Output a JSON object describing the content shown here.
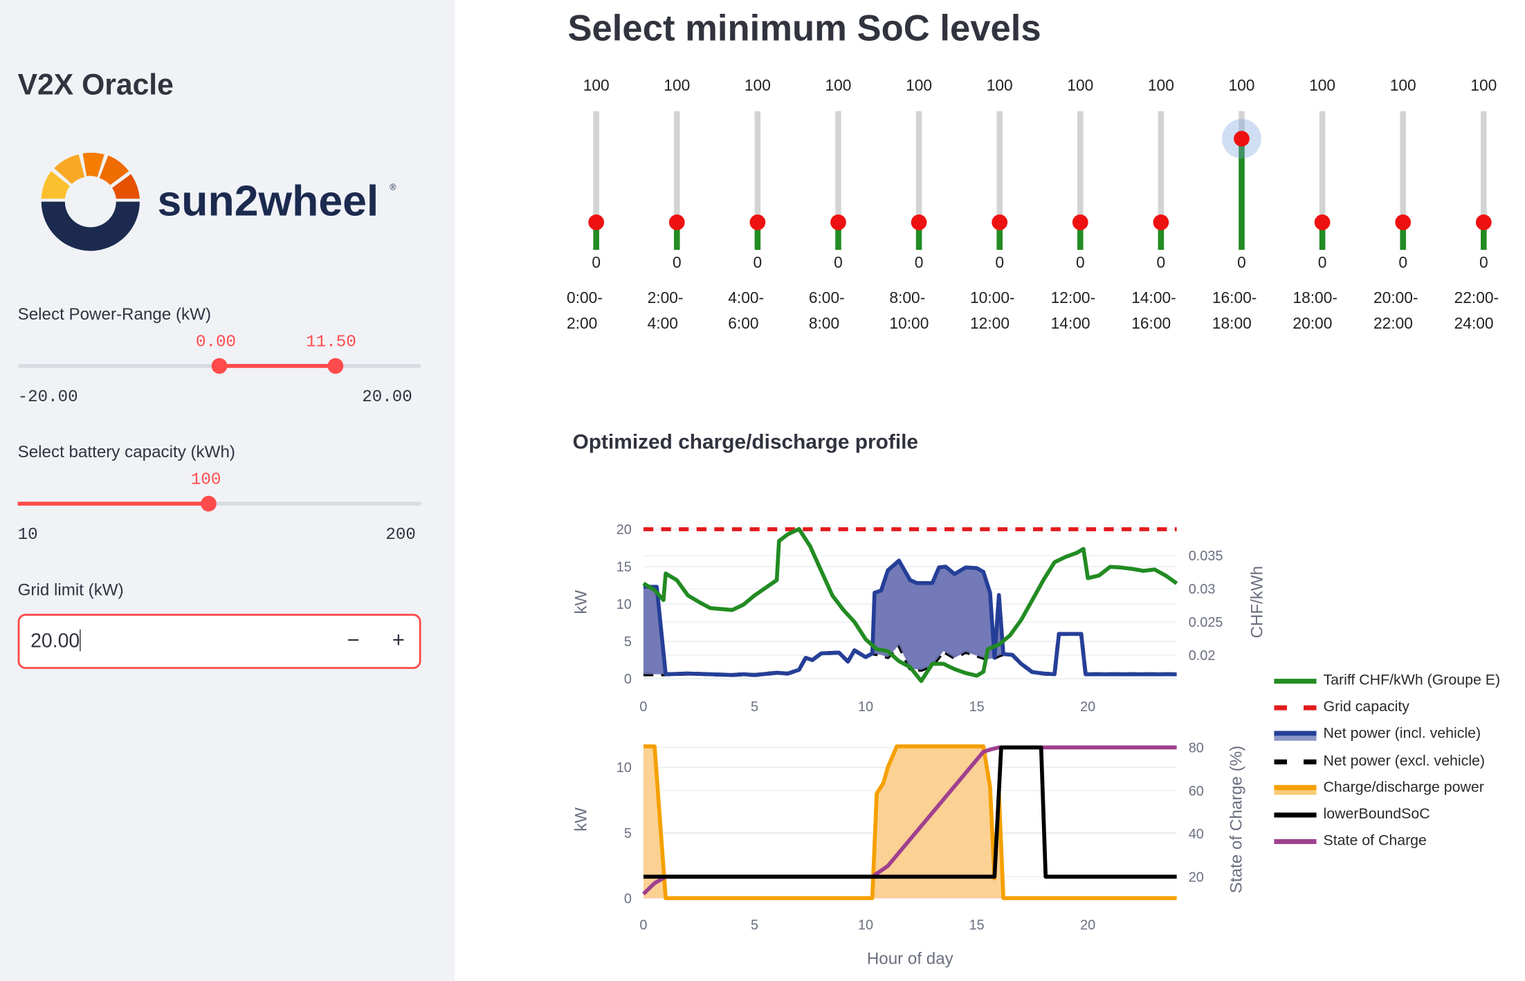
{
  "sidebar": {
    "app_title": "V2X Oracle",
    "logo_text": "sun2wheel",
    "power_range": {
      "label": "Select Power-Range (kW)",
      "low": "0.00",
      "high": "11.50",
      "min": "-20.00",
      "max": "20.00",
      "low_value": 0,
      "high_value": 11.5,
      "min_value": -20,
      "max_value": 20
    },
    "battery": {
      "label": "Select battery capacity (kWh)",
      "value": "100",
      "min": "10",
      "max": "200",
      "numeric_value": 100,
      "min_value": 10,
      "max_value": 200
    },
    "grid_limit": {
      "label": "Grid limit (kW)",
      "value": "20.00",
      "minus": "−",
      "plus": "+"
    }
  },
  "main": {
    "title": "Select minimum SoC levels",
    "slots": [
      {
        "max": "100",
        "min": "0",
        "value": 20,
        "time": [
          "0:00-",
          "2:00"
        ]
      },
      {
        "max": "100",
        "min": "0",
        "value": 20,
        "time": [
          "2:00-",
          "4:00"
        ]
      },
      {
        "max": "100",
        "min": "0",
        "value": 20,
        "time": [
          "4:00-",
          "6:00"
        ]
      },
      {
        "max": "100",
        "min": "0",
        "value": 20,
        "time": [
          "6:00-",
          "8:00"
        ]
      },
      {
        "max": "100",
        "min": "0",
        "value": 20,
        "time": [
          "8:00-",
          "10:00"
        ]
      },
      {
        "max": "100",
        "min": "0",
        "value": 20,
        "time": [
          "10:00-",
          "12:00"
        ]
      },
      {
        "max": "100",
        "min": "0",
        "value": 20,
        "time": [
          "12:00-",
          "14:00"
        ]
      },
      {
        "max": "100",
        "min": "0",
        "value": 20,
        "time": [
          "14:00-",
          "16:00"
        ]
      },
      {
        "max": "100",
        "min": "0",
        "value": 80,
        "time": [
          "16:00-",
          "18:00"
        ],
        "focused": true
      },
      {
        "max": "100",
        "min": "0",
        "value": 20,
        "time": [
          "18:00-",
          "20:00"
        ]
      },
      {
        "max": "100",
        "min": "0",
        "value": 20,
        "time": [
          "20:00-",
          "22:00"
        ]
      },
      {
        "max": "100",
        "min": "0",
        "value": 20,
        "time": [
          "22:00-",
          "24:00"
        ]
      }
    ],
    "profile_title": "Optimized charge/discharge profile"
  },
  "colors": {
    "accent": "#ff4b4b",
    "tariff": "#228b22",
    "grid": "#e31a1c",
    "net_incl": "#253f98",
    "net_incl_fill": "#6b73b3",
    "net_excl": "#000000",
    "charge": "#f5a000",
    "charge_fill": "#fccf8e",
    "lower_bound": "#000000",
    "soc": "#a0408f"
  },
  "chart_data": [
    {
      "type": "line",
      "xlabel": "",
      "ylabel": "kW",
      "y2label": "CHF/kWh",
      "xlim": [
        0,
        24
      ],
      "ylim": [
        0,
        20
      ],
      "y2lim": [
        0.0165,
        0.039
      ],
      "xticks": [
        "0",
        "5",
        "10",
        "15",
        "20"
      ],
      "yticks": [
        "0",
        "5",
        "10",
        "15",
        "20"
      ],
      "y2ticks": [
        "0.02",
        "0.025",
        "0.03",
        "0.035"
      ],
      "grid": true,
      "series": [
        {
          "name": "Grid capacity",
          "axis": "y",
          "dash": true,
          "points": [
            [
              0,
              20
            ],
            [
              24,
              20
            ]
          ]
        },
        {
          "name": "Net power (excl. vehicle)",
          "axis": "y",
          "dash": true,
          "points": [
            [
              0,
              0.6
            ],
            [
              1,
              0.6
            ],
            [
              2,
              0.7
            ],
            [
              3,
              0.6
            ],
            [
              4,
              0.5
            ],
            [
              4.5,
              0.6
            ],
            [
              5,
              0.5
            ],
            [
              6,
              0.8
            ],
            [
              6.5,
              0.7
            ],
            [
              7,
              1.2
            ],
            [
              7.3,
              2.8
            ],
            [
              7.6,
              2.5
            ],
            [
              8,
              3.4
            ],
            [
              8.8,
              3.5
            ],
            [
              9.2,
              2.3
            ],
            [
              9.5,
              3.8
            ],
            [
              10,
              2.9
            ],
            [
              10.3,
              3.4
            ],
            [
              10.7,
              3.2
            ],
            [
              11,
              2.9
            ],
            [
              11.5,
              4.5
            ],
            [
              12,
              1.4
            ],
            [
              12.5,
              1.2
            ],
            [
              13,
              1.8
            ],
            [
              13.5,
              3.7
            ],
            [
              14,
              2.8
            ],
            [
              14.5,
              3.6
            ],
            [
              15,
              3.1
            ],
            [
              15.5,
              2.6
            ],
            [
              15.8,
              2.8
            ],
            [
              16,
              3.1
            ],
            [
              16.2,
              3.3
            ],
            [
              16.6,
              3.2
            ],
            [
              17,
              2.0
            ],
            [
              17.5,
              0.9
            ],
            [
              18,
              0.7
            ],
            [
              18.5,
              0.6
            ],
            [
              18.7,
              6.0
            ],
            [
              19.7,
              6.0
            ],
            [
              19.9,
              0.6
            ],
            [
              24,
              0.6
            ]
          ]
        },
        {
          "name": "Net power (incl. vehicle)",
          "axis": "y",
          "fill": true,
          "points": [
            [
              0,
              12.3
            ],
            [
              0.6,
              12.3
            ],
            [
              1,
              0.6
            ],
            [
              2,
              0.7
            ],
            [
              3,
              0.6
            ],
            [
              4,
              0.5
            ],
            [
              4.5,
              0.6
            ],
            [
              5,
              0.5
            ],
            [
              6,
              0.8
            ],
            [
              6.5,
              0.7
            ],
            [
              7,
              1.2
            ],
            [
              7.3,
              2.8
            ],
            [
              7.6,
              2.5
            ],
            [
              8,
              3.4
            ],
            [
              8.8,
              3.5
            ],
            [
              9.2,
              2.3
            ],
            [
              9.5,
              3.8
            ],
            [
              10,
              2.9
            ],
            [
              10.3,
              3.4
            ],
            [
              10.4,
              11.5
            ],
            [
              10.7,
              11.8
            ],
            [
              11,
              14.5
            ],
            [
              11.5,
              15.8
            ],
            [
              12,
              13.2
            ],
            [
              12.3,
              12.8
            ],
            [
              13,
              12.8
            ],
            [
              13.3,
              14.9
            ],
            [
              13.6,
              15.0
            ],
            [
              14,
              14.0
            ],
            [
              14.5,
              14.9
            ],
            [
              15,
              14.8
            ],
            [
              15.3,
              14.3
            ],
            [
              15.6,
              11.5
            ],
            [
              15.8,
              2.8
            ],
            [
              16,
              11.2
            ],
            [
              16.2,
              3.3
            ],
            [
              16.6,
              3.2
            ],
            [
              17,
              2.0
            ],
            [
              17.5,
              0.9
            ],
            [
              18,
              0.7
            ],
            [
              18.5,
              0.6
            ],
            [
              18.7,
              6.0
            ],
            [
              19.7,
              6.0
            ],
            [
              19.9,
              0.6
            ],
            [
              24,
              0.6
            ]
          ]
        },
        {
          "name": "Tariff CHF/kWh (Groupe E)",
          "axis": "y2",
          "points": [
            [
              0,
              0.0308
            ],
            [
              0.5,
              0.0298
            ],
            [
              0.9,
              0.0283
            ],
            [
              1,
              0.0323
            ],
            [
              1.5,
              0.0313
            ],
            [
              2,
              0.029
            ],
            [
              2.5,
              0.028
            ],
            [
              3,
              0.0271
            ],
            [
              4,
              0.0268
            ],
            [
              4.5,
              0.0276
            ],
            [
              5,
              0.029
            ],
            [
              6,
              0.0313
            ],
            [
              6.1,
              0.0372
            ],
            [
              6.5,
              0.0382
            ],
            [
              7,
              0.039
            ],
            [
              7.5,
              0.0364
            ],
            [
              8,
              0.0327
            ],
            [
              8.5,
              0.029
            ],
            [
              9,
              0.0268
            ],
            [
              9.5,
              0.025
            ],
            [
              10,
              0.0224
            ],
            [
              10.5,
              0.0209
            ],
            [
              11,
              0.0206
            ],
            [
              11.5,
              0.0191
            ],
            [
              12,
              0.0182
            ],
            [
              12.5,
              0.0161
            ],
            [
              13,
              0.0187
            ],
            [
              13.5,
              0.0187
            ],
            [
              14,
              0.0179
            ],
            [
              14.5,
              0.0173
            ],
            [
              15,
              0.0169
            ],
            [
              15.3,
              0.0175
            ],
            [
              15.5,
              0.0209
            ],
            [
              16,
              0.0216
            ],
            [
              16.5,
              0.023
            ],
            [
              17,
              0.0253
            ],
            [
              17.5,
              0.0283
            ],
            [
              18,
              0.0313
            ],
            [
              18.5,
              0.034
            ],
            [
              19,
              0.0348
            ],
            [
              19.5,
              0.0354
            ],
            [
              19.8,
              0.036
            ],
            [
              20,
              0.0316
            ],
            [
              20.5,
              0.032
            ],
            [
              21,
              0.0333
            ],
            [
              21.5,
              0.0332
            ],
            [
              22,
              0.033
            ],
            [
              22.5,
              0.0327
            ],
            [
              23,
              0.0329
            ],
            [
              23.5,
              0.032
            ],
            [
              24,
              0.0308
            ]
          ]
        }
      ]
    },
    {
      "type": "line",
      "xlabel": "Hour of day",
      "ylabel": "kW",
      "y2label": "State of Charge (%)",
      "xlim": [
        0,
        24
      ],
      "ylim": [
        0,
        11.6
      ],
      "y2lim": [
        10,
        80
      ],
      "xticks": [
        "0",
        "5",
        "10",
        "15",
        "20"
      ],
      "yticks": [
        "0",
        "5",
        "10"
      ],
      "y2ticks": [
        "20",
        "40",
        "60",
        "80"
      ],
      "grid": true,
      "series": [
        {
          "name": "Charge/discharge power",
          "axis": "y",
          "fill": true,
          "points": [
            [
              0,
              11.6
            ],
            [
              0.5,
              11.6
            ],
            [
              1,
              0
            ],
            [
              10.3,
              0
            ],
            [
              10.5,
              8
            ],
            [
              10.8,
              8.8
            ],
            [
              11,
              10
            ],
            [
              11.4,
              11.6
            ],
            [
              15.3,
              11.6
            ],
            [
              15.6,
              8.5
            ],
            [
              15.8,
              1.5
            ],
            [
              16,
              8
            ],
            [
              16.2,
              0
            ],
            [
              24,
              0
            ]
          ]
        },
        {
          "name": "State of Charge",
          "axis": "y2",
          "points": [
            [
              0,
              12
            ],
            [
              0.5,
              17
            ],
            [
              1,
              20
            ],
            [
              10.3,
              20
            ],
            [
              11,
              25
            ],
            [
              15.3,
              78
            ],
            [
              15.6,
              79
            ],
            [
              16,
              80
            ],
            [
              24,
              80
            ]
          ]
        },
        {
          "name": "lowerBoundSoC",
          "axis": "y2",
          "points": [
            [
              0,
              20
            ],
            [
              15.8,
              20
            ],
            [
              16.1,
              80
            ],
            [
              17.9,
              80
            ],
            [
              18.1,
              20
            ],
            [
              24,
              20
            ]
          ]
        }
      ]
    }
  ],
  "legend": [
    {
      "name": "Tariff CHF/kWh (Groupe E)",
      "style": "line",
      "color": "#228b22"
    },
    {
      "name": "Grid capacity",
      "style": "dash",
      "color": "#e31a1c"
    },
    {
      "name": "Net power (incl. vehicle)",
      "style": "fill",
      "color": "#253f98"
    },
    {
      "name": "Net power (excl. vehicle)",
      "style": "dash",
      "color": "#000000"
    },
    {
      "name": "Charge/discharge power",
      "style": "fill",
      "color": "#f5a000"
    },
    {
      "name": "lowerBoundSoC",
      "style": "line",
      "color": "#000000"
    },
    {
      "name": "State of Charge",
      "style": "line",
      "color": "#a0408f"
    }
  ]
}
